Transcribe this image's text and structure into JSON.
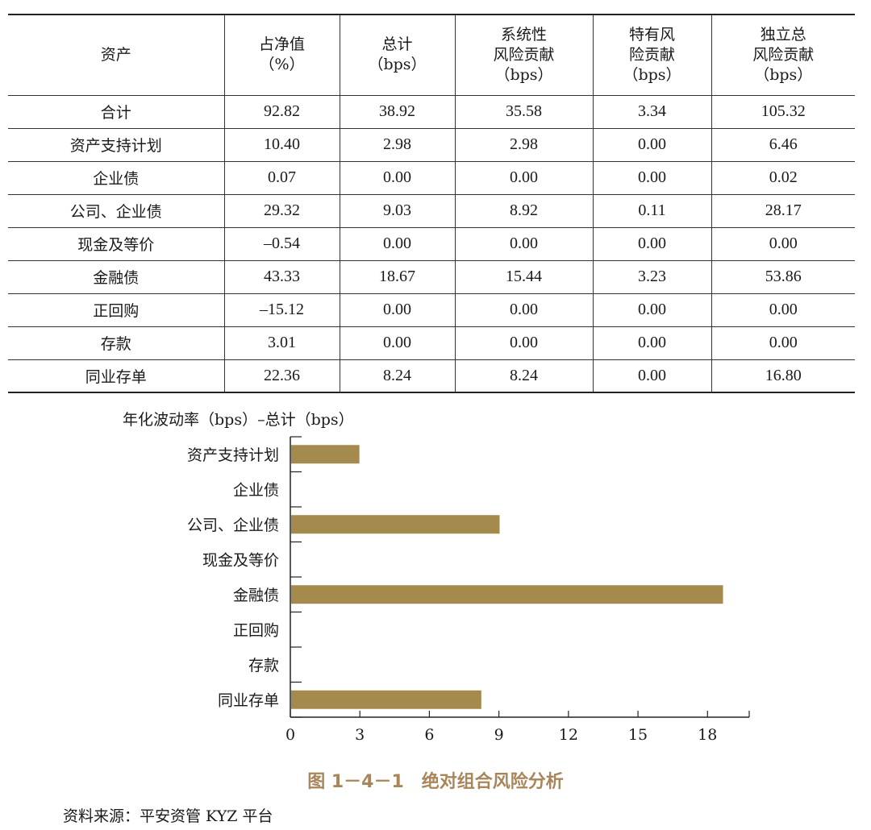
{
  "table": {
    "columns": [
      {
        "lines": [
          "资产"
        ]
      },
      {
        "lines": [
          "占净值",
          "（%）"
        ]
      },
      {
        "lines": [
          "总计",
          "（bps）"
        ]
      },
      {
        "lines": [
          "系统性",
          "风险贡献",
          "（bps）"
        ]
      },
      {
        "lines": [
          "特有风",
          "险贡献",
          "（bps）"
        ]
      },
      {
        "lines": [
          "独立总",
          "风险贡献",
          "（bps）"
        ]
      }
    ],
    "rows": [
      [
        "合计",
        "92.82",
        "38.92",
        "35.58",
        "3.34",
        "105.32"
      ],
      [
        "资产支持计划",
        "10.40",
        "2.98",
        "2.98",
        "0.00",
        "6.46"
      ],
      [
        "企业债",
        "0.07",
        "0.00",
        "0.00",
        "0.00",
        "0.02"
      ],
      [
        "公司、企业债",
        "29.32",
        "9.03",
        "8.92",
        "0.11",
        "28.17"
      ],
      [
        "现金及等价",
        "–0.54",
        "0.00",
        "0.00",
        "0.00",
        "0.00"
      ],
      [
        "金融债",
        "43.33",
        "18.67",
        "15.44",
        "3.23",
        "53.86"
      ],
      [
        "正回购",
        "–15.12",
        "0.00",
        "0.00",
        "0.00",
        "0.00"
      ],
      [
        "存款",
        "3.01",
        "0.00",
        "0.00",
        "0.00",
        "0.00"
      ],
      [
        "同业存单",
        "22.36",
        "8.24",
        "8.24",
        "0.00",
        "16.80"
      ]
    ]
  },
  "chart_data": {
    "type": "bar",
    "orientation": "horizontal",
    "title": "年化波动率（bps）–总计（bps）",
    "categories": [
      "资产支持计划",
      "企业债",
      "公司、企业债",
      "现金及等价",
      "金融债",
      "正回购",
      "存款",
      "同业存单"
    ],
    "values": [
      2.98,
      0.0,
      9.03,
      0.0,
      18.67,
      0.0,
      0.0,
      8.24
    ],
    "xlim": [
      0,
      19.8
    ],
    "xticks": [
      0,
      3,
      6,
      9,
      12,
      15,
      18
    ],
    "bar_color": "#a48a4c",
    "grid": false
  },
  "caption": "图 1－4－1　绝对组合风险分析",
  "source": "资料来源：平安资管 KYZ 平台",
  "colors": {
    "caption": "#a8865a",
    "bar": "#a48a4c",
    "rule": "#222222"
  }
}
